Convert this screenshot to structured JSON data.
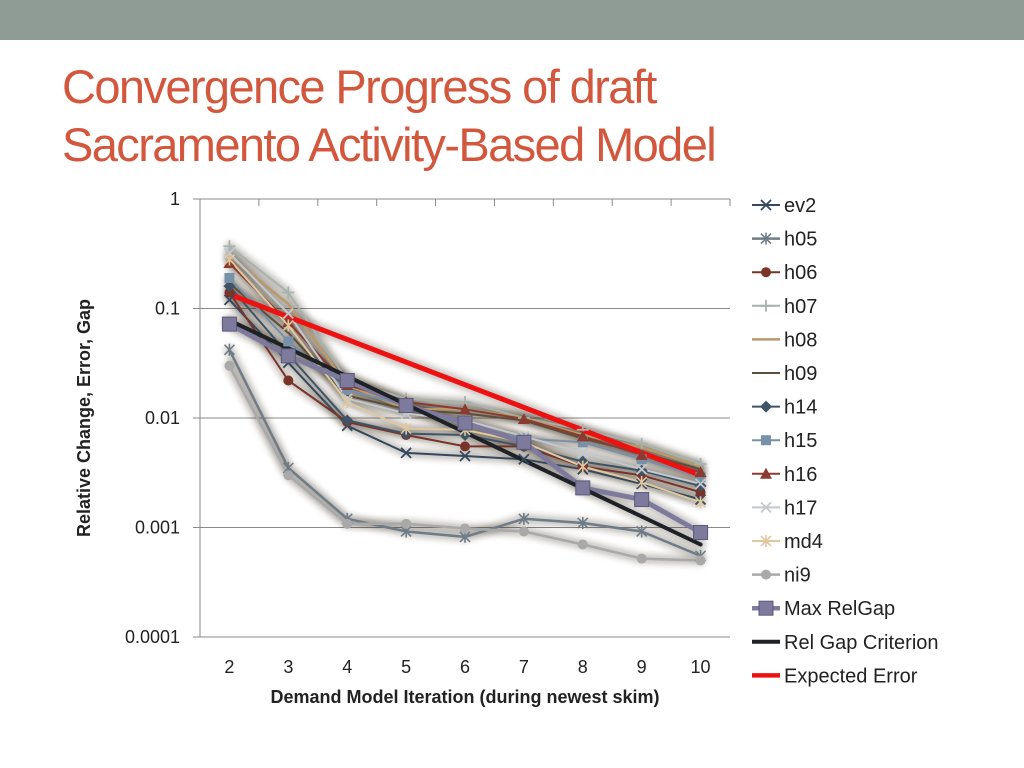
{
  "slide": {
    "title_line1": "Convergence Progress of draft",
    "title_line2": "Sacramento Activity-Based Model"
  },
  "colors": {
    "top_band": "#8f9c96",
    "title": "#d2573d"
  },
  "chart_data": {
    "type": "line",
    "title": "",
    "xlabel": "Demand Model Iteration (during newest skim)",
    "ylabel": "Relative Change, Error, Gap",
    "yscale": "log",
    "ylim": [
      0.0001,
      1
    ],
    "y_ticks": [
      1,
      0.1,
      0.01,
      0.001,
      0.0001
    ],
    "y_tick_labels": [
      "1",
      "0.1",
      "0.01",
      "0.001",
      "0.0001"
    ],
    "x": [
      2,
      3,
      4,
      5,
      6,
      7,
      8,
      9,
      10
    ],
    "x_tick_labels": [
      "2",
      "3",
      "4",
      "5",
      "6",
      "7",
      "8",
      "9",
      "10"
    ],
    "grid": true,
    "legend_position": "right",
    "series": [
      {
        "name": "ev2",
        "color": "#34495e",
        "marker": "x",
        "width": 2,
        "values": [
          0.12,
          0.032,
          0.0085,
          0.0048,
          0.0045,
          0.0042,
          0.0034,
          0.0025,
          0.0018
        ]
      },
      {
        "name": "h05",
        "color": "#6f7c88",
        "marker": "star",
        "width": 2.5,
        "values": [
          0.042,
          0.0035,
          0.0012,
          0.00092,
          0.00082,
          0.0012,
          0.0011,
          0.00092,
          0.00055
        ]
      },
      {
        "name": "h06",
        "color": "#7a3328",
        "marker": "circle",
        "width": 2,
        "values": [
          0.14,
          0.022,
          0.0092,
          0.007,
          0.0055,
          0.0055,
          0.0036,
          0.003,
          0.0021
        ]
      },
      {
        "name": "h07",
        "color": "#a8b2ac",
        "marker": "plus",
        "width": 2,
        "values": [
          0.37,
          0.14,
          0.022,
          0.015,
          0.014,
          0.01,
          0.0078,
          0.0058,
          0.0038
        ]
      },
      {
        "name": "h08",
        "color": "#b89a6a",
        "marker": "none",
        "width": 2.5,
        "values": [
          0.3,
          0.11,
          0.02,
          0.012,
          0.012,
          0.01,
          0.007,
          0.0054,
          0.0036
        ]
      },
      {
        "name": "h09",
        "color": "#5e4e3c",
        "marker": "none",
        "width": 2,
        "values": [
          0.17,
          0.06,
          0.016,
          0.012,
          0.011,
          0.0095,
          0.0065,
          0.0048,
          0.0034
        ]
      },
      {
        "name": "h14",
        "color": "#3f5567",
        "marker": "diamond",
        "width": 2,
        "values": [
          0.16,
          0.038,
          0.0095,
          0.0072,
          0.007,
          0.0055,
          0.004,
          0.0033,
          0.0024
        ]
      },
      {
        "name": "h15",
        "color": "#7891a8",
        "marker": "square",
        "width": 2,
        "values": [
          0.19,
          0.05,
          0.018,
          0.013,
          0.0085,
          0.0065,
          0.006,
          0.0042,
          0.0029
        ]
      },
      {
        "name": "h16",
        "color": "#8c3b30",
        "marker": "triangle",
        "width": 2,
        "values": [
          0.26,
          0.075,
          0.02,
          0.014,
          0.012,
          0.0098,
          0.0068,
          0.0046,
          0.0032
        ]
      },
      {
        "name": "h17",
        "color": "#c2c8cc",
        "marker": "x",
        "width": 2,
        "values": [
          0.32,
          0.09,
          0.015,
          0.011,
          0.0095,
          0.0068,
          0.0048,
          0.0034,
          0.0025
        ]
      },
      {
        "name": "md4",
        "color": "#dfc8a0",
        "marker": "star",
        "width": 2,
        "values": [
          0.28,
          0.07,
          0.014,
          0.008,
          0.0078,
          0.006,
          0.0036,
          0.0026,
          0.0017
        ]
      },
      {
        "name": "ni9",
        "color": "#a9a9a9",
        "marker": "circle",
        "width": 2.5,
        "values": [
          0.03,
          0.003,
          0.00108,
          0.00108,
          0.00098,
          0.00092,
          0.0007,
          0.00052,
          0.0005
        ]
      },
      {
        "name": "Max RelGap",
        "color": "#7d7a9e",
        "marker": "square-lg",
        "width": 5,
        "values": [
          0.072,
          0.037,
          0.022,
          0.013,
          0.009,
          0.006,
          0.0023,
          0.0018,
          0.0009
        ]
      },
      {
        "name": "Rel Gap Criterion",
        "color": "#1e2126",
        "marker": "none",
        "width": 4,
        "values": [
          0.078,
          null,
          null,
          null,
          null,
          null,
          null,
          null,
          0.0007
        ]
      },
      {
        "name": "Expected Error",
        "color": "#ee1111",
        "marker": "none",
        "width": 5,
        "values": [
          0.135,
          null,
          null,
          null,
          null,
          null,
          null,
          null,
          0.003
        ]
      }
    ]
  }
}
